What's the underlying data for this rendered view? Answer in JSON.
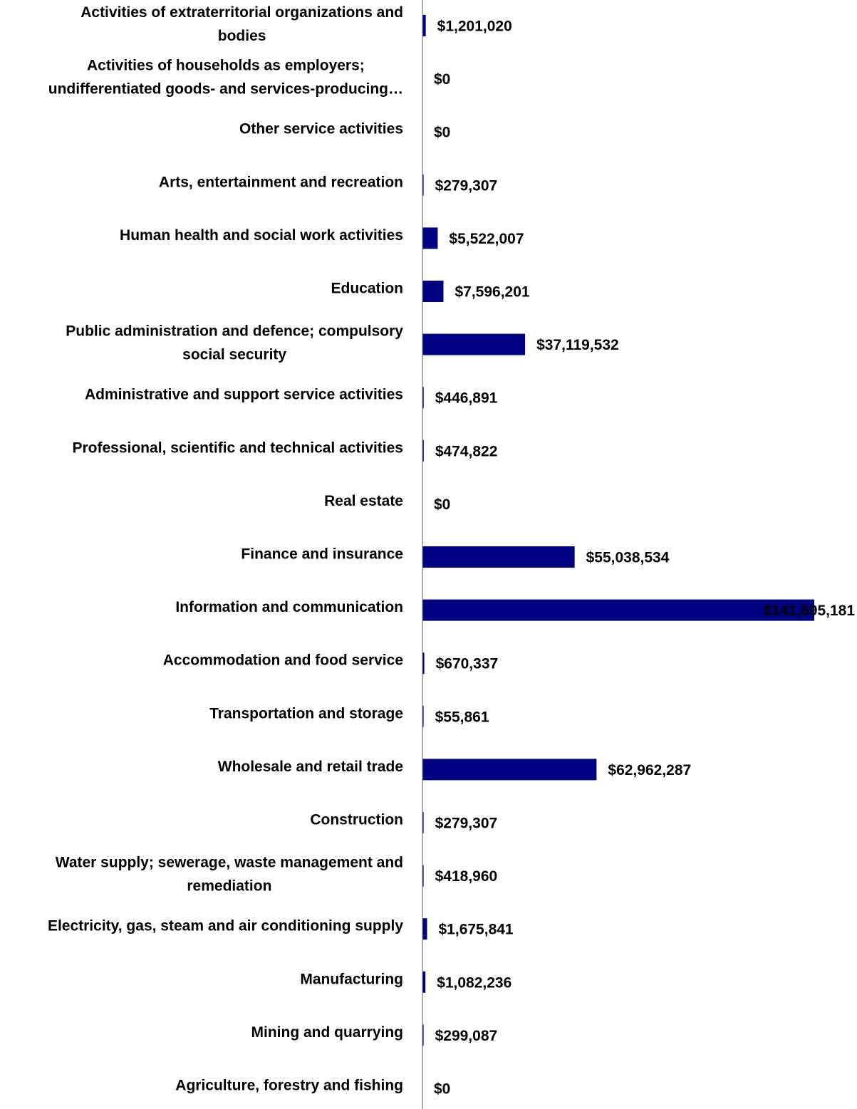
{
  "chart_data": {
    "type": "bar",
    "orientation": "horizontal",
    "title": "",
    "xlabel": "",
    "ylabel": "",
    "grid": false,
    "legend": "none",
    "bar_color": "#000080",
    "axis_color": "#7f7f7f",
    "xlim": [
      0,
      141695181
    ],
    "categories": [
      [
        "Activities of extraterritorial organizations and",
        "bodies"
      ],
      [
        "Activities of households as employers;",
        "undifferentiated goods- and services-producing…"
      ],
      [
        "Other service activities"
      ],
      [
        "Arts, entertainment and recreation"
      ],
      [
        "Human health and social work activities"
      ],
      [
        "Education"
      ],
      [
        "Public administration and defence; compulsory",
        "social security"
      ],
      [
        "Administrative and support service activities"
      ],
      [
        "Professional, scientific and technical activities"
      ],
      [
        "Real estate"
      ],
      [
        "Finance and insurance"
      ],
      [
        "Information and communication"
      ],
      [
        "Accommodation and food service"
      ],
      [
        "Transportation and storage"
      ],
      [
        "Wholesale and retail trade"
      ],
      [
        "Construction"
      ],
      [
        "Water supply; sewerage, waste management and",
        "remediation"
      ],
      [
        "Electricity, gas, steam and air conditioning supply"
      ],
      [
        "Manufacturing"
      ],
      [
        "Mining and quarrying"
      ],
      [
        "Agriculture, forestry and fishing"
      ]
    ],
    "values": [
      1201020,
      0,
      0,
      279307,
      5522007,
      7596201,
      37119532,
      446891,
      474822,
      0,
      55038534,
      141695181,
      670337,
      55861,
      62962287,
      279307,
      418960,
      1675841,
      1082236,
      299087,
      0
    ],
    "data_labels": [
      "$1,201,020",
      "$0",
      "$0",
      "$279,307",
      "$5,522,007",
      "$7,596,201",
      "$37,119,532",
      "$446,891",
      "$474,822",
      "$0",
      "$55,038,534",
      "$141,695,181",
      "$670,337",
      "$55,861",
      "$62,962,287",
      "$279,307",
      "$418,960",
      "$1,675,841",
      "$1,082,236",
      "$299,087",
      "$0"
    ]
  }
}
